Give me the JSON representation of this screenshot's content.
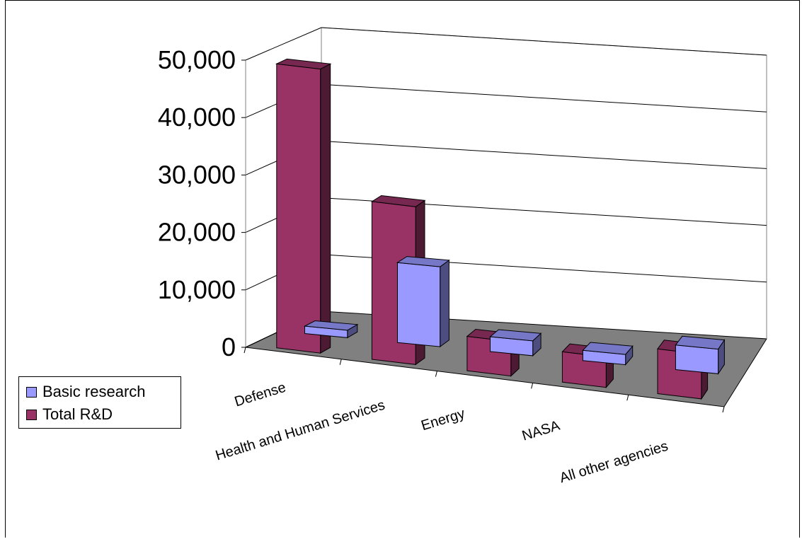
{
  "chart_data": {
    "type": "bar",
    "categories": [
      "Defense",
      "Health and Human Services",
      "Energy",
      "NASA",
      "All other agencies"
    ],
    "series": [
      {
        "name": "Basic research",
        "values": [
          1300,
          14000,
          2600,
          1800,
          4300
        ],
        "color": "#9999ff"
      },
      {
        "name": "Total R&D",
        "values": [
          49500,
          27500,
          6000,
          5300,
          7800
        ],
        "color": "#993366"
      }
    ],
    "y_ticks": [
      "0",
      "10,000",
      "20,000",
      "30,000",
      "40,000",
      "50,000"
    ],
    "ylim": [
      0,
      50000
    ],
    "grid": true,
    "projection": "3d-column",
    "legend_position": "left",
    "floor_color": "#808080"
  }
}
